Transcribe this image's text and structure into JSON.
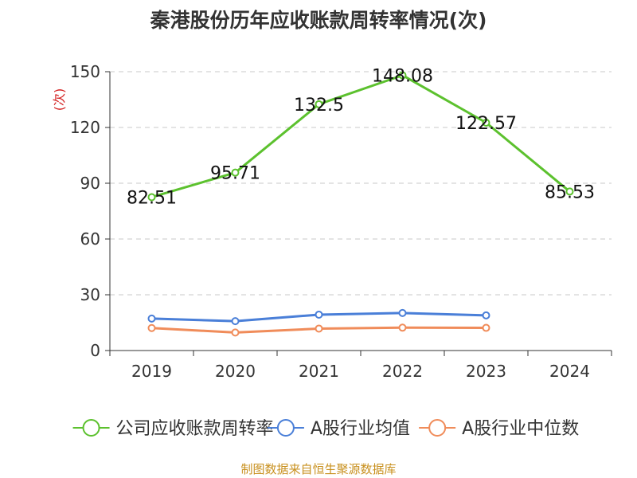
{
  "title": "秦港股份历年应收账款周转率情况(次)",
  "source": "制图数据来自恒生聚源数据库",
  "chart_data": {
    "type": "line",
    "title": "秦港股份历年应收账款周转率情况(次)",
    "ylabel": "(次)",
    "xlabel": "",
    "categories": [
      "2019",
      "2020",
      "2021",
      "2022",
      "2023",
      "2024"
    ],
    "ylim": [
      0,
      150
    ],
    "yticks": [
      0,
      30,
      60,
      90,
      120,
      150
    ],
    "grid": true,
    "legend_position": "bottom",
    "series": [
      {
        "name": "公司应收账款周转率",
        "color": "#5cc12e",
        "values": [
          82.51,
          95.71,
          132.5,
          148.08,
          122.57,
          85.53
        ],
        "labels": [
          "82.51",
          "95.71",
          "132.5",
          "148.08",
          "122.57",
          "85.53"
        ]
      },
      {
        "name": "A股行业均值",
        "color": "#4a7fd8",
        "values": [
          17.2,
          15.8,
          19.3,
          20.2,
          18.9,
          null
        ]
      },
      {
        "name": "A股行业中位数",
        "color": "#f08c5a",
        "values": [
          12.1,
          9.7,
          11.8,
          12.3,
          12.2,
          null
        ]
      }
    ]
  }
}
